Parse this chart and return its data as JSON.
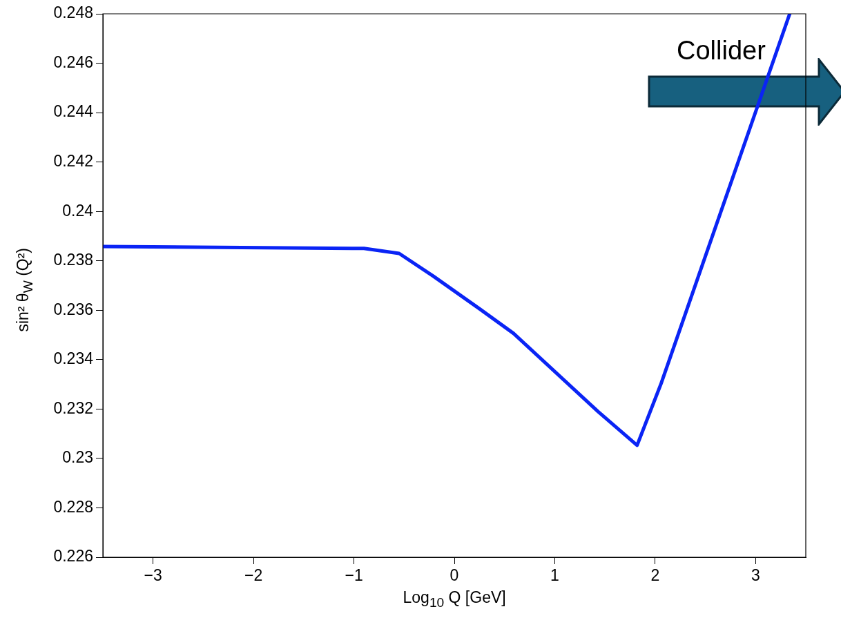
{
  "chart_data": {
    "type": "line",
    "xlabel": "Log$_{10}$ Q [GeV]",
    "ylabel": "sin² θ$_{W}$ (Q²)",
    "annotations": [
      "Collider"
    ],
    "series": [
      {
        "color": "#0a24f5",
        "x": [
          -3.5,
          -0.9,
          -0.55,
          -0.21,
          0.25,
          0.59,
          1.43,
          1.82,
          2.06,
          3.34
        ],
        "values": [
          0.23858,
          0.2385,
          0.2383,
          0.23738,
          0.23606,
          0.23506,
          0.2319,
          0.23053,
          0.23304,
          0.248
        ]
      }
    ],
    "xlim": [
      -3.5,
      3.5
    ],
    "xticks": [
      {
        "value": -3,
        "label": "−3"
      },
      {
        "value": -2,
        "label": "−2"
      },
      {
        "value": -1,
        "label": "−1"
      },
      0,
      1,
      2,
      3
    ],
    "ylim": [
      0.226,
      0.248
    ],
    "yticks": [
      0.226,
      0.228,
      0.23,
      0.232,
      0.234,
      0.236,
      0.238,
      0.24,
      0.242,
      0.244,
      0.246,
      0.248
    ],
    "grid": false,
    "legend": false,
    "marker": "none",
    "line_style": "solid"
  }
}
